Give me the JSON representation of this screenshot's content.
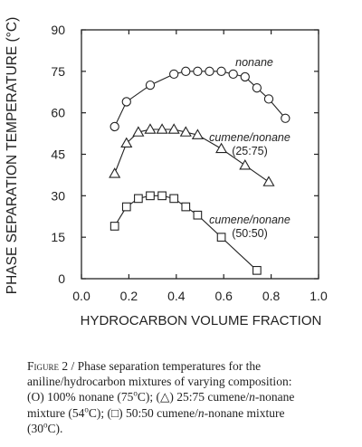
{
  "chart_data": {
    "type": "scatter",
    "ylabel": "PHASE SEPARATION TEMPERATURE (°C)",
    "xlabel": "HYDROCARBON VOLUME FRACTION",
    "xlim": [
      0.0,
      1.0
    ],
    "ylim": [
      0,
      90
    ],
    "xticks": [
      "0.0",
      "0.2",
      "0.4",
      "0.6",
      "0.8",
      "1.0"
    ],
    "yticks": [
      "0",
      "15",
      "30",
      "45",
      "60",
      "75",
      "90"
    ],
    "grid": false,
    "series": [
      {
        "name": "nonane",
        "marker": "circle",
        "x": [
          0.14,
          0.19,
          0.29,
          0.39,
          0.44,
          0.49,
          0.54,
          0.59,
          0.64,
          0.69,
          0.74,
          0.79,
          0.86
        ],
        "y": [
          55,
          64,
          70,
          74,
          75,
          75,
          75,
          75,
          74,
          73,
          69,
          65,
          58
        ]
      },
      {
        "name": "cumene/nonane (25:75)",
        "marker": "triangle",
        "x": [
          0.14,
          0.19,
          0.24,
          0.29,
          0.34,
          0.39,
          0.44,
          0.49,
          0.59,
          0.69,
          0.79
        ],
        "y": [
          38,
          49,
          53,
          54,
          54,
          54,
          53,
          52,
          47,
          41,
          35
        ]
      },
      {
        "name": "cumene/nonane (50:50)",
        "marker": "square",
        "x": [
          0.14,
          0.19,
          0.24,
          0.29,
          0.34,
          0.39,
          0.44,
          0.49,
          0.59,
          0.74
        ],
        "y": [
          19,
          26,
          29,
          30,
          30,
          29,
          26,
          23,
          15,
          3
        ]
      }
    ],
    "annotations": [
      {
        "id": "ann_nonane",
        "lines": [
          "nonane"
        ]
      },
      {
        "id": "ann_cn2575",
        "lines": [
          "cumene/nonane",
          "(25:75)"
        ]
      },
      {
        "id": "ann_cn5050",
        "lines": [
          "cumene/nonane",
          "(50:50)"
        ]
      }
    ]
  },
  "caption": {
    "lines": [
      "FIGURE 2 /  Phase separation temperatures for  the",
      "aniline/hydrocarbon mixtures of varying composition:",
      "(O) 100% nonane (75°C); (△) 25:75 cumene/n-nonane",
      "mixture (54°C); (□) 50:50 cumene/n-nonane mixture",
      "(30°C)."
    ]
  }
}
